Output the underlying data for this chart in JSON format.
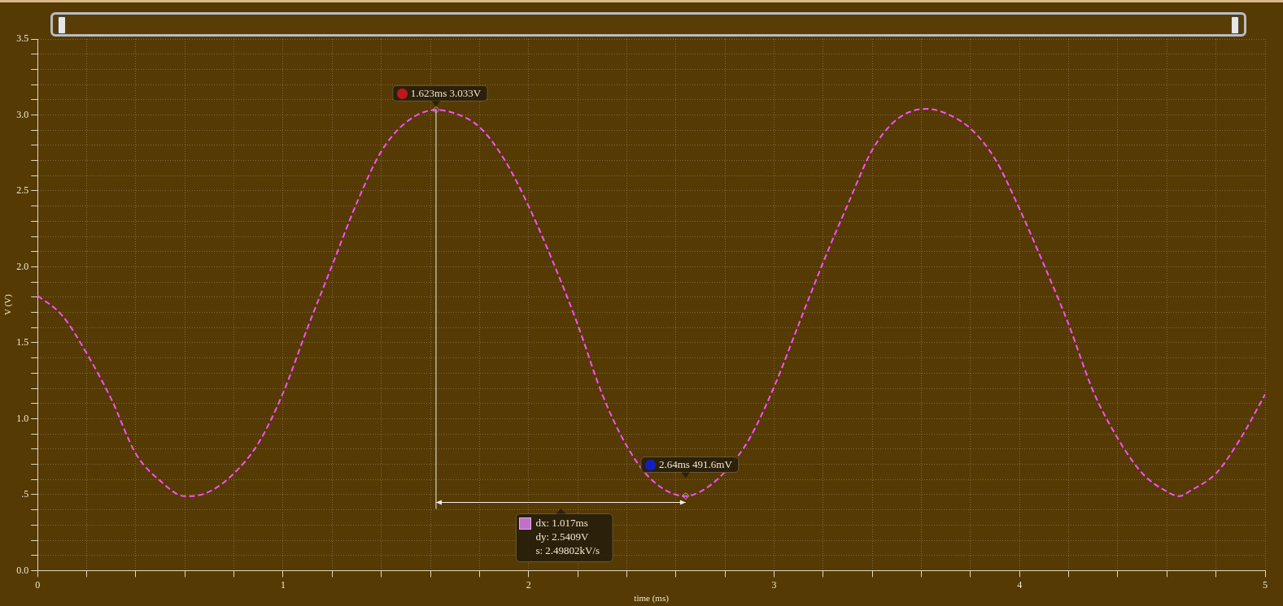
{
  "chart_data": {
    "type": "line",
    "xlabel": "time (ms)",
    "ylabel": "V (V)",
    "x": [
      0,
      0.1,
      0.2,
      0.3,
      0.4,
      0.5,
      0.6,
      0.62,
      0.7,
      0.8,
      0.9,
      1.0,
      1.1,
      1.2,
      1.3,
      1.4,
      1.5,
      1.623,
      1.7,
      1.8,
      1.9,
      2.0,
      2.1,
      2.2,
      2.3,
      2.4,
      2.5,
      2.64,
      2.7,
      2.8,
      2.9,
      3.0,
      3.1,
      3.2,
      3.3,
      3.4,
      3.5,
      3.62,
      3.7,
      3.8,
      3.9,
      4.0,
      4.1,
      4.2,
      4.3,
      4.4,
      4.5,
      4.6,
      4.65,
      4.7,
      4.8,
      4.9,
      5.0
    ],
    "series": [
      {
        "color": "#ff4dff",
        "values": [
          1.81,
          1.68,
          1.43,
          1.13,
          0.77,
          0.59,
          0.49,
          0.49,
          0.52,
          0.64,
          0.84,
          1.17,
          1.6,
          2.01,
          2.42,
          2.76,
          2.95,
          3.033,
          3.01,
          2.92,
          2.71,
          2.4,
          2.03,
          1.62,
          1.16,
          0.82,
          0.6,
          0.49,
          0.52,
          0.65,
          0.87,
          1.21,
          1.62,
          2.03,
          2.41,
          2.77,
          2.97,
          3.04,
          3.01,
          2.91,
          2.71,
          2.38,
          2.01,
          1.62,
          1.18,
          0.87,
          0.64,
          0.52,
          0.49,
          0.53,
          0.64,
          0.87,
          1.16
        ]
      }
    ],
    "xlim": [
      0,
      5
    ],
    "ylim": [
      0,
      3.5
    ],
    "xticks": [
      0,
      {
        "value": 0.2,
        "label": null
      },
      {
        "value": 0.4,
        "label": null
      },
      {
        "value": 0.6,
        "label": null
      },
      {
        "value": 0.8,
        "label": null
      },
      1,
      {
        "value": 1.2,
        "label": null
      },
      {
        "value": 1.4,
        "label": null
      },
      {
        "value": 1.6,
        "label": null
      },
      {
        "value": 1.8,
        "label": null
      },
      2,
      {
        "value": 2.2,
        "label": null
      },
      {
        "value": 2.4,
        "label": null
      },
      {
        "value": 2.6,
        "label": null
      },
      {
        "value": 2.8,
        "label": null
      },
      3,
      {
        "value": 3.2,
        "label": null
      },
      {
        "value": 3.4,
        "label": null
      },
      {
        "value": 3.6,
        "label": null
      },
      {
        "value": 3.8,
        "label": null
      },
      4,
      {
        "value": 4.2,
        "label": null
      },
      {
        "value": 4.4,
        "label": null
      },
      {
        "value": 4.6,
        "label": null
      },
      {
        "value": 4.8,
        "label": null
      },
      5
    ],
    "yticks": [
      {
        "value": 0,
        "label": "0.0"
      },
      {
        "value": 0.1,
        "label": null
      },
      {
        "value": 0.2,
        "label": null
      },
      {
        "value": 0.3,
        "label": null
      },
      {
        "value": 0.4,
        "label": null
      },
      {
        "value": 0.5,
        "label": ".5"
      },
      {
        "value": 0.6,
        "label": null
      },
      {
        "value": 0.7,
        "label": null
      },
      {
        "value": 0.8,
        "label": null
      },
      {
        "value": 0.9,
        "label": null
      },
      {
        "value": 1,
        "label": "1.0"
      },
      {
        "value": 1.1,
        "label": null
      },
      {
        "value": 1.2,
        "label": null
      },
      {
        "value": 1.3,
        "label": null
      },
      {
        "value": 1.4,
        "label": null
      },
      1.5,
      {
        "value": 1.6,
        "label": null
      },
      {
        "value": 1.7,
        "label": null
      },
      {
        "value": 1.8,
        "label": null
      },
      {
        "value": 1.9,
        "label": null
      },
      {
        "value": 2,
        "label": "2.0"
      },
      {
        "value": 2.1,
        "label": null
      },
      {
        "value": 2.2,
        "label": null
      },
      {
        "value": 2.3,
        "label": null
      },
      {
        "value": 2.4,
        "label": null
      },
      2.5,
      {
        "value": 2.6,
        "label": null
      },
      {
        "value": 2.7,
        "label": null
      },
      {
        "value": 2.8,
        "label": null
      },
      {
        "value": 2.9,
        "label": null
      },
      {
        "value": 3,
        "label": "3.0"
      },
      {
        "value": 3.1,
        "label": null
      },
      {
        "value": 3.2,
        "label": null
      },
      {
        "value": 3.3,
        "label": null
      },
      {
        "value": 3.4,
        "label": null
      },
      3.5
    ],
    "grid": true,
    "line_style": "dashed",
    "marker": "none",
    "annotations": [
      {
        "text": "1.623ms 3.033V",
        "x": 1.623,
        "y": 3.033
      },
      {
        "text": "2.64ms 491.6mV",
        "x": 2.64,
        "y": 0.4916
      },
      "dx: 1.017ms",
      "dy: 2.5409V",
      "s: 2.49802kV/s"
    ]
  }
}
